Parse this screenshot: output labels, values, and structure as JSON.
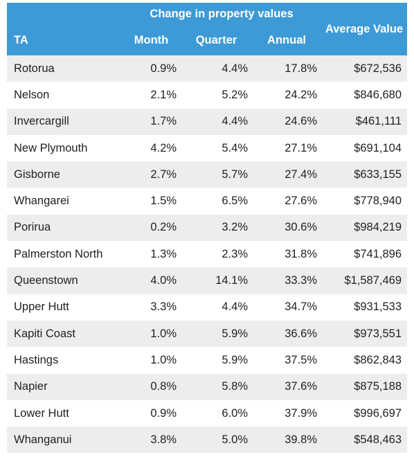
{
  "table": {
    "group_header": "Change in property values",
    "columns": {
      "ta": "TA",
      "month": "Month",
      "quarter": "Quarter",
      "annual": "Annual",
      "average": "Average Value"
    },
    "rows": [
      {
        "ta": "Rotorua",
        "month": "0.9%",
        "quarter": "4.4%",
        "annual": "17.8%",
        "average": "$672,536"
      },
      {
        "ta": "Nelson",
        "month": "2.1%",
        "quarter": "5.2%",
        "annual": "24.2%",
        "average": "$846,680"
      },
      {
        "ta": "Invercargill",
        "month": "1.7%",
        "quarter": "4.4%",
        "annual": "24.6%",
        "average": "$461,111"
      },
      {
        "ta": "New Plymouth",
        "month": "4.2%",
        "quarter": "5.4%",
        "annual": "27.1%",
        "average": "$691,104"
      },
      {
        "ta": "Gisborne",
        "month": "2.7%",
        "quarter": "5.7%",
        "annual": "27.4%",
        "average": "$633,155"
      },
      {
        "ta": "Whangarei",
        "month": "1.5%",
        "quarter": "6.5%",
        "annual": "27.6%",
        "average": "$778,940"
      },
      {
        "ta": "Porirua",
        "month": "0.2%",
        "quarter": "3.2%",
        "annual": "30.6%",
        "average": "$984,219"
      },
      {
        "ta": "Palmerston North",
        "month": "1.3%",
        "quarter": "2.3%",
        "annual": "31.8%",
        "average": "$741,896"
      },
      {
        "ta": "Queenstown",
        "month": "4.0%",
        "quarter": "14.1%",
        "annual": "33.3%",
        "average": "$1,587,469"
      },
      {
        "ta": "Upper Hutt",
        "month": "3.3%",
        "quarter": "4.4%",
        "annual": "34.7%",
        "average": "$931,533"
      },
      {
        "ta": "Kapiti Coast",
        "month": "1.0%",
        "quarter": "5.9%",
        "annual": "36.6%",
        "average": "$973,551"
      },
      {
        "ta": "Hastings",
        "month": "1.0%",
        "quarter": "5.9%",
        "annual": "37.5%",
        "average": "$862,843"
      },
      {
        "ta": "Napier",
        "month": "0.8%",
        "quarter": "5.8%",
        "annual": "37.6%",
        "average": "$875,188"
      },
      {
        "ta": "Lower Hutt",
        "month": "0.9%",
        "quarter": "6.0%",
        "annual": "37.9%",
        "average": "$996,697"
      },
      {
        "ta": "Whanganui",
        "month": "3.8%",
        "quarter": "5.0%",
        "annual": "39.8%",
        "average": "$548,463"
      }
    ]
  },
  "colors": {
    "header_bg": "#3d9ad6",
    "header_text": "#ffffff",
    "row_alt_bg": "#ededed"
  }
}
